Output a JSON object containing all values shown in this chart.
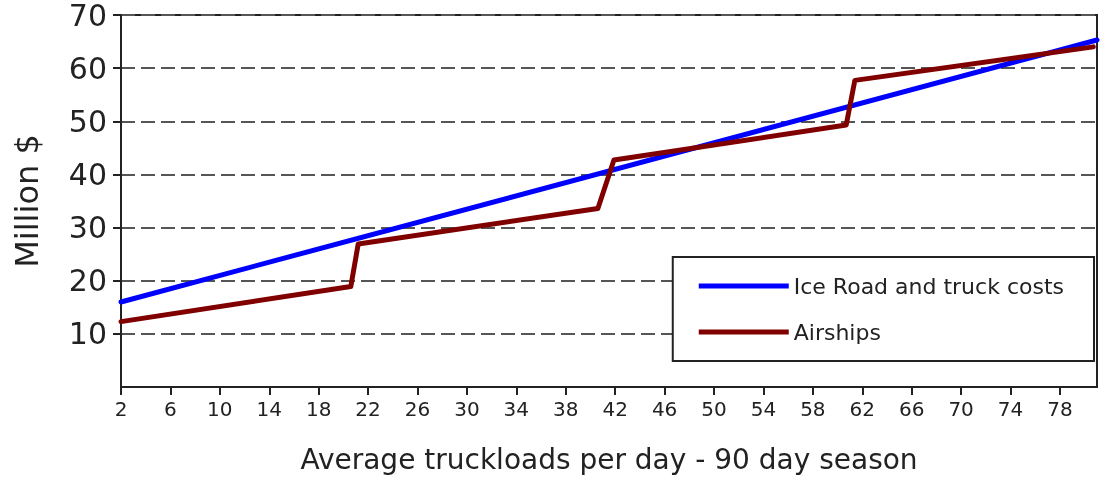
{
  "chart_data": {
    "type": "line",
    "xlabel": "Average truckloads per day - 90 day season",
    "ylabel": "Million $",
    "xlim": [
      2,
      81
    ],
    "xticks": [
      2,
      6,
      10,
      14,
      18,
      22,
      26,
      30,
      34,
      38,
      42,
      46,
      50,
      54,
      58,
      62,
      66,
      70,
      74,
      78
    ],
    "ylim": [
      0,
      70
    ],
    "yticks": [
      10,
      20,
      30,
      40,
      50,
      60,
      70
    ],
    "series": [
      {
        "name": "Ice Road and truck costs",
        "color": "#0000ff",
        "x": [
          2,
          81
        ],
        "values": [
          16,
          65.3
        ]
      },
      {
        "name": "Airships",
        "color": "#800000",
        "x": [
          2,
          20.6,
          21.2,
          40.6,
          41.9,
          60.7,
          61.4,
          80.7
        ],
        "values": [
          12.3,
          18.9,
          26.9,
          33.6,
          42.7,
          49.3,
          57.7,
          64
        ]
      }
    ],
    "grid": "y",
    "legend": "bottom right",
    "marker": "none",
    "line_style": "solid"
  }
}
